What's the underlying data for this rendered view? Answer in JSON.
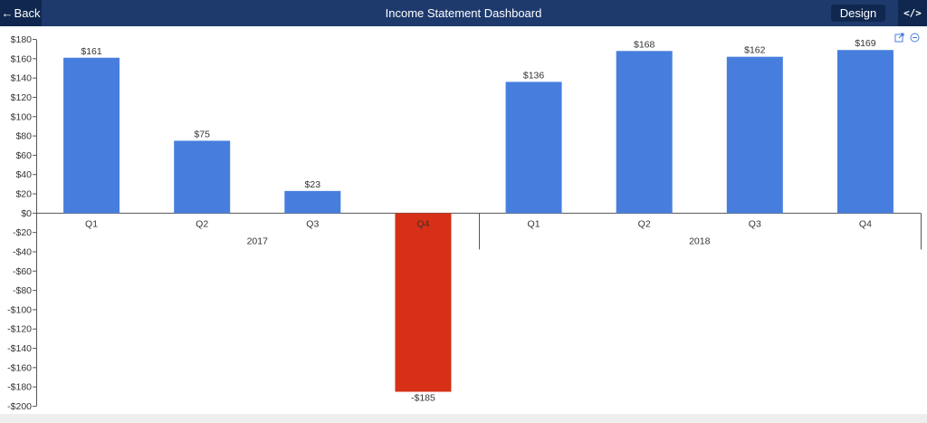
{
  "header": {
    "back_label": "Back",
    "title": "Income Statement Dashboard",
    "design_label": "Design",
    "code_label": "</>"
  },
  "colors": {
    "header_bg": "#1e3a6d",
    "button_bg": "#10284f",
    "positive": "#477ede",
    "negative": "#d63016"
  },
  "icons": [
    "arrow-left-icon",
    "code-icon",
    "export-icon",
    "zoom-out-icon"
  ],
  "chart_data": {
    "type": "bar",
    "title": "",
    "xlabel": "",
    "ylabel": "",
    "ylim": [
      -200,
      180
    ],
    "y_ticks": [
      180,
      160,
      140,
      120,
      100,
      80,
      60,
      40,
      20,
      0,
      -20,
      -40,
      -60,
      -80,
      -100,
      -120,
      -140,
      -160,
      -180,
      -200
    ],
    "y_tick_labels": [
      "$180",
      "$160",
      "$140",
      "$120",
      "$100",
      "$80",
      "$60",
      "$40",
      "$20",
      "$0",
      "-$20",
      "-$40",
      "-$60",
      "-$80",
      "-$100",
      "-$120",
      "-$140",
      "-$160",
      "-$180",
      "-$200"
    ],
    "groups": [
      {
        "label": "2017",
        "categories": [
          "Q1",
          "Q2",
          "Q3",
          "Q4"
        ],
        "values": [
          161,
          75,
          23,
          -185
        ],
        "value_labels": [
          "$161",
          "$75",
          "$23",
          "-$185"
        ]
      },
      {
        "label": "2018",
        "categories": [
          "Q1",
          "Q2",
          "Q3",
          "Q4"
        ],
        "values": [
          136,
          168,
          162,
          169
        ],
        "value_labels": [
          "$136",
          "$168",
          "$162",
          "$169"
        ]
      }
    ],
    "grid": false,
    "legend": "none"
  }
}
